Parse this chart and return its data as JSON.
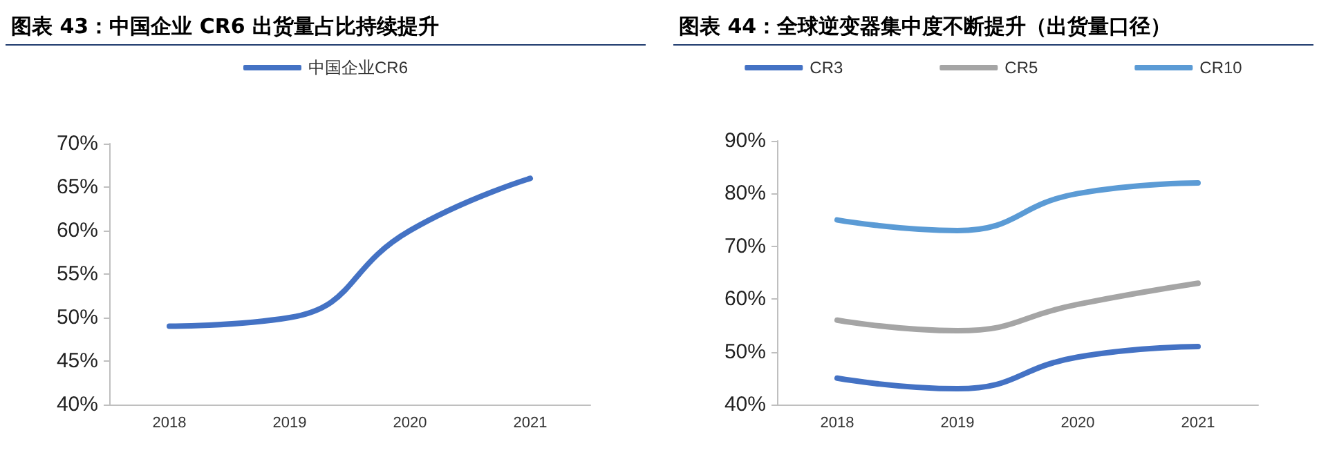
{
  "chart_data": [
    {
      "type": "line",
      "title": "图表 43：中国企业 CR6 出货量占比持续提升",
      "categories": [
        "2018",
        "2019",
        "2020",
        "2021"
      ],
      "series": [
        {
          "name": "中国企业CR6",
          "color": "#4472c4",
          "values": [
            49,
            50,
            60,
            66
          ]
        }
      ],
      "ylim": [
        40,
        70
      ],
      "yticks": [
        {
          "value": 40,
          "label": "40%"
        },
        {
          "value": 45,
          "label": "45%"
        },
        {
          "value": 50,
          "label": "50%"
        },
        {
          "value": 55,
          "label": "55%"
        },
        {
          "value": 60,
          "label": "60%"
        },
        {
          "value": 65,
          "label": "65%"
        },
        {
          "value": 70,
          "label": "70%"
        }
      ],
      "grid": false,
      "legend": "top",
      "marker": "none",
      "line_style": "solid"
    },
    {
      "type": "line",
      "title": "图表 44：全球逆变器集中度不断提升（出货量口径）",
      "categories": [
        "2018",
        "2019",
        "2020",
        "2021"
      ],
      "series": [
        {
          "name": "CR3",
          "color": "#4472c4",
          "values": [
            45,
            43,
            49,
            51
          ]
        },
        {
          "name": "CR5",
          "color": "#a5a5a5",
          "values": [
            56,
            54,
            59,
            63
          ]
        },
        {
          "name": "CR10",
          "color": "#5b9bd5",
          "values": [
            75,
            73,
            80,
            82
          ]
        }
      ],
      "ylim": [
        40,
        90
      ],
      "yticks": [
        {
          "value": 40,
          "label": "40%"
        },
        {
          "value": 50,
          "label": "50%"
        },
        {
          "value": 60,
          "label": "60%"
        },
        {
          "value": 70,
          "label": "70%"
        },
        {
          "value": 80,
          "label": "80%"
        },
        {
          "value": 90,
          "label": "90%"
        }
      ],
      "grid": false,
      "legend": "top",
      "marker": "none",
      "line_style": "solid"
    }
  ]
}
